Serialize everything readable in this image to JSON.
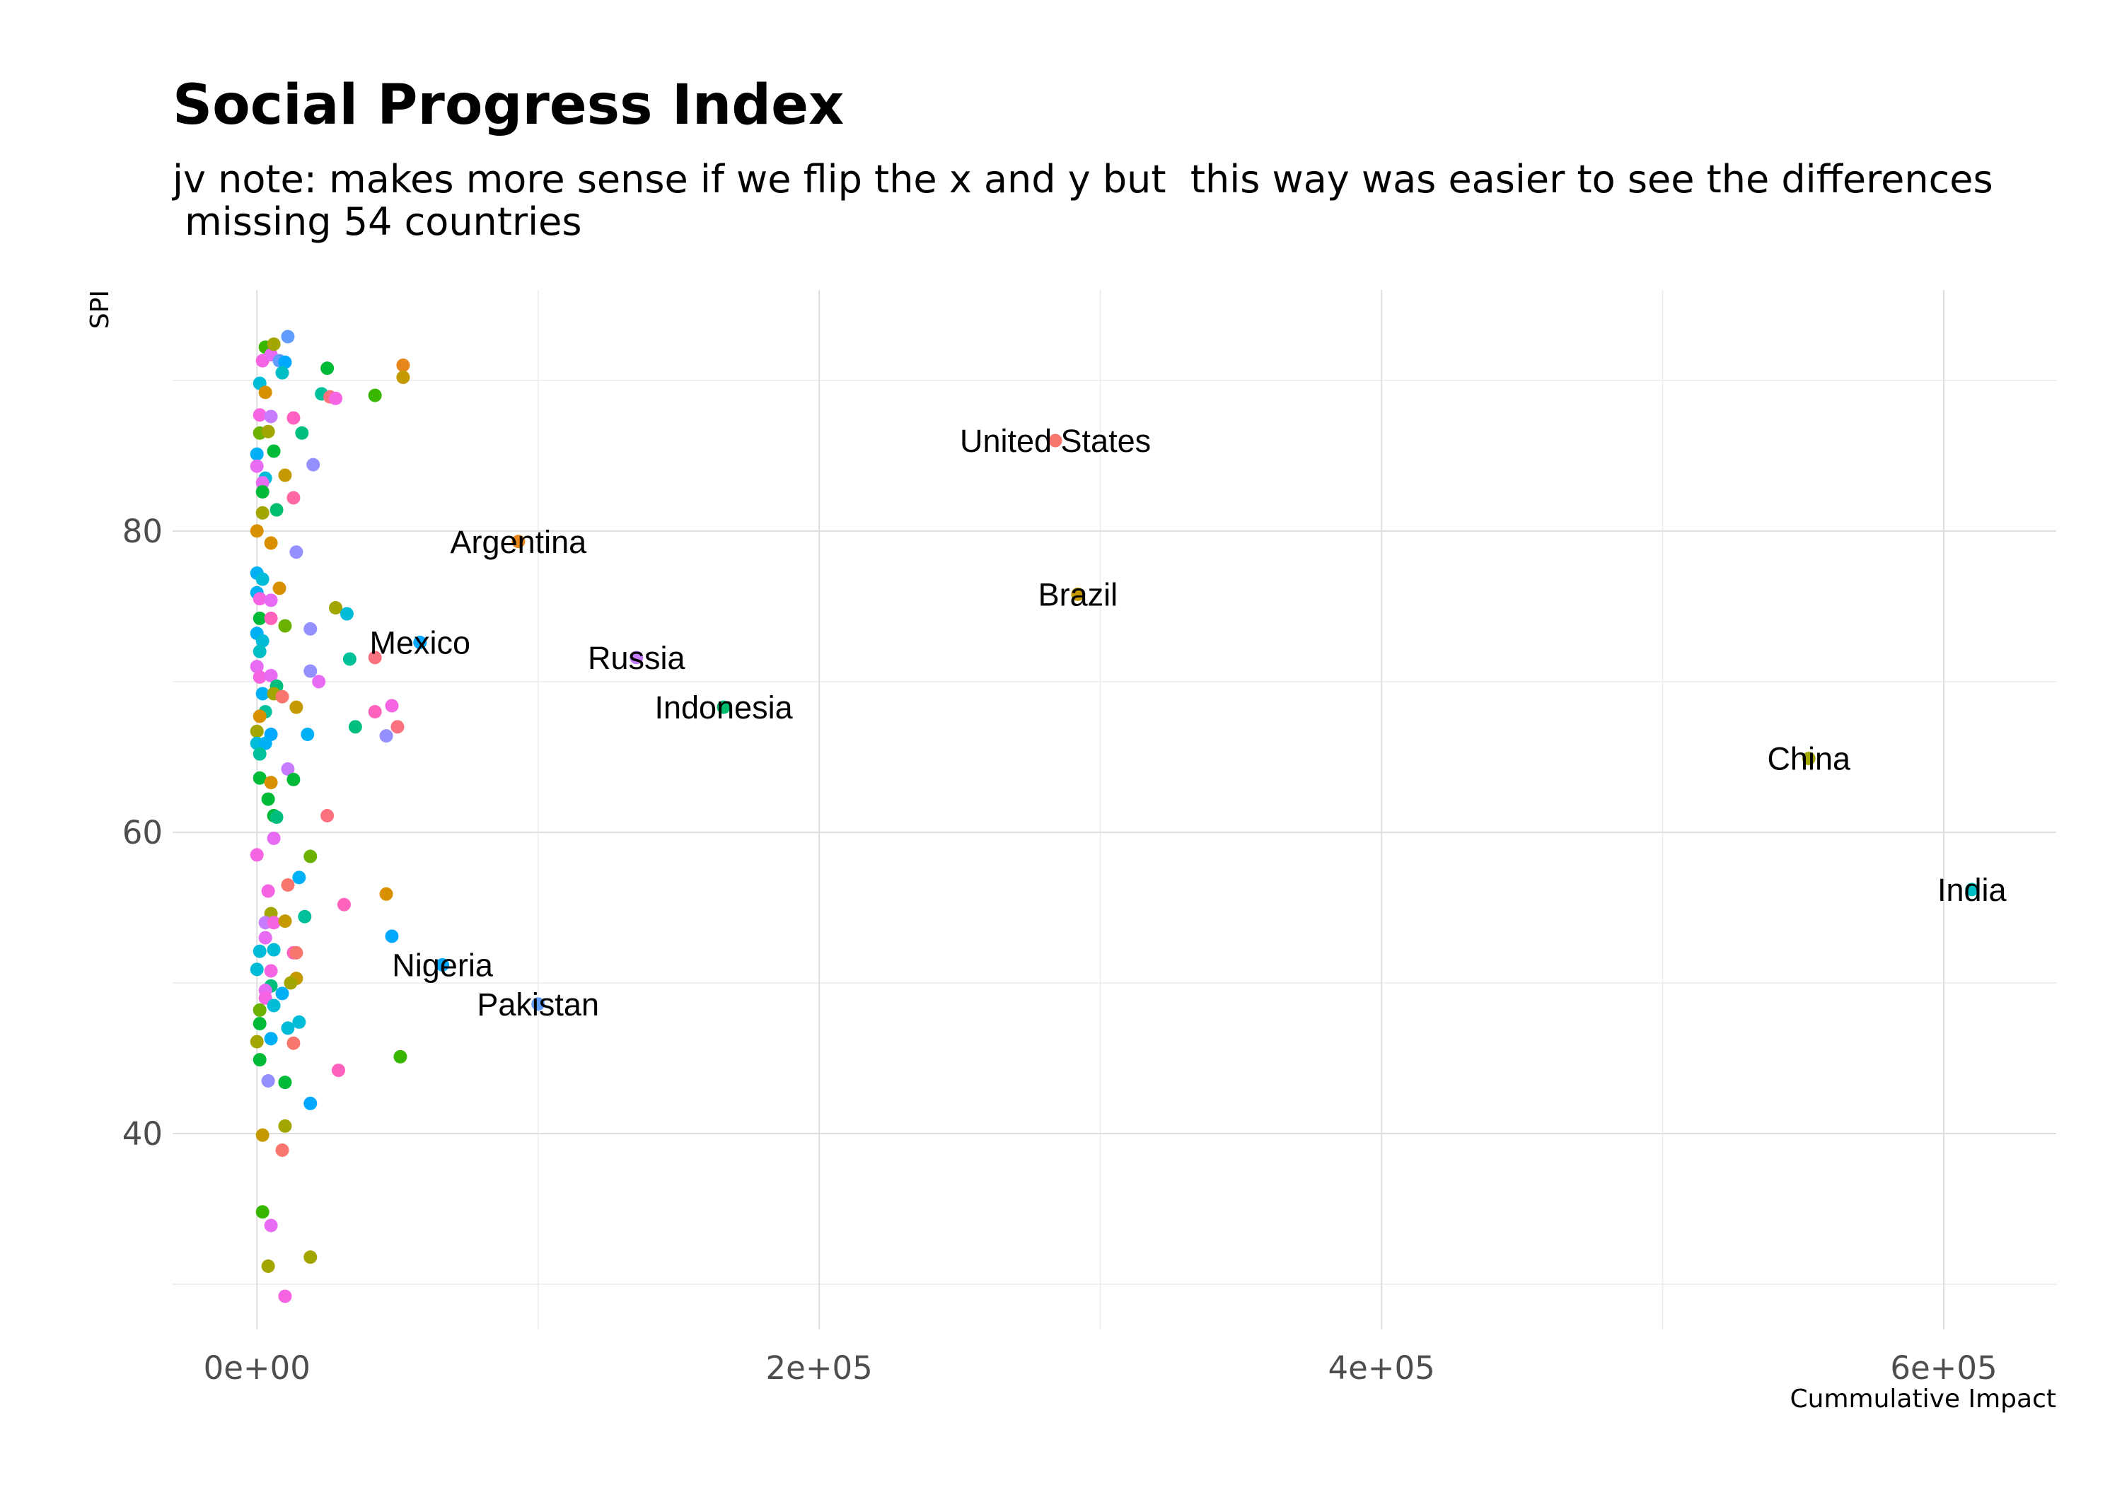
{
  "chart_data": {
    "type": "scatter",
    "title": "Social Progress Index",
    "subtitle": "jv note: makes more sense if we flip the x and y but  this way was easier to see the differences\n missing 54 countries",
    "xlabel": "Cummulative Impact",
    "ylabel": "SPI",
    "xlim": [
      -30000,
      640000
    ],
    "ylim": [
      27,
      96
    ],
    "x_ticks": [
      0,
      200000,
      400000,
      600000
    ],
    "x_tick_labels": [
      "0e+00",
      "2e+05",
      "4e+05",
      "6e+05"
    ],
    "y_ticks": [
      40,
      60,
      80
    ],
    "y_tick_labels": [
      "40",
      "60",
      "80"
    ],
    "grid": true,
    "legend": "none",
    "labeled_points": [
      {
        "label": "United States",
        "x": 284000,
        "y": 86.0,
        "color": "#f8766d"
      },
      {
        "label": "Argentina",
        "x": 93000,
        "y": 79.3,
        "color": "#e7861b"
      },
      {
        "label": "Brazil",
        "x": 292000,
        "y": 75.8,
        "color": "#c49a00"
      },
      {
        "label": "Mexico",
        "x": 58000,
        "y": 72.6,
        "color": "#00a9ff"
      },
      {
        "label": "Russia",
        "x": 135000,
        "y": 71.6,
        "color": "#c77cff"
      },
      {
        "label": "Indonesia",
        "x": 166000,
        "y": 68.3,
        "color": "#00be70"
      },
      {
        "label": "China",
        "x": 552000,
        "y": 64.9,
        "color": "#a3a500"
      },
      {
        "label": "India",
        "x": 610000,
        "y": 56.2,
        "color": "#00bfc4"
      },
      {
        "label": "Nigeria",
        "x": 66000,
        "y": 51.2,
        "color": "#00a9ff"
      },
      {
        "label": "Pakistan",
        "x": 100000,
        "y": 48.6,
        "color": "#619cff"
      }
    ],
    "points": [
      {
        "x": 1000,
        "y": 89.8,
        "color": "#00bcd8"
      },
      {
        "x": 2000,
        "y": 91.3,
        "color": "#f564e3"
      },
      {
        "x": 3000,
        "y": 92.2,
        "color": "#39b600"
      },
      {
        "x": 5000,
        "y": 91.7,
        "color": "#e76bf3"
      },
      {
        "x": 6000,
        "y": 92.4,
        "color": "#a3a500"
      },
      {
        "x": 8000,
        "y": 91.3,
        "color": "#619cff"
      },
      {
        "x": 10000,
        "y": 91.2,
        "color": "#00a9ff"
      },
      {
        "x": 11000,
        "y": 92.9,
        "color": "#619cff"
      },
      {
        "x": 9000,
        "y": 90.5,
        "color": "#00bfc4"
      },
      {
        "x": 25000,
        "y": 90.8,
        "color": "#00ba38"
      },
      {
        "x": 52000,
        "y": 91.0,
        "color": "#e7861b"
      },
      {
        "x": 52000,
        "y": 90.2,
        "color": "#c49a00"
      },
      {
        "x": 3000,
        "y": 89.2,
        "color": "#d89000"
      },
      {
        "x": 23000,
        "y": 89.1,
        "color": "#00c19a"
      },
      {
        "x": 26000,
        "y": 88.9,
        "color": "#fc717f"
      },
      {
        "x": 28000,
        "y": 88.8,
        "color": "#f564e3"
      },
      {
        "x": 42000,
        "y": 89.0,
        "color": "#39b600"
      },
      {
        "x": 1000,
        "y": 87.7,
        "color": "#f564e3"
      },
      {
        "x": 5000,
        "y": 87.6,
        "color": "#c77cff"
      },
      {
        "x": 13000,
        "y": 87.5,
        "color": "#ff61c3"
      },
      {
        "x": 1000,
        "y": 86.5,
        "color": "#6bb100"
      },
      {
        "x": 4000,
        "y": 86.6,
        "color": "#a3a500"
      },
      {
        "x": 16000,
        "y": 86.5,
        "color": "#00bf7d"
      },
      {
        "x": 0,
        "y": 85.1,
        "color": "#00b0f6"
      },
      {
        "x": 6000,
        "y": 85.3,
        "color": "#00ba38"
      },
      {
        "x": 0,
        "y": 84.3,
        "color": "#e76bf3"
      },
      {
        "x": 20000,
        "y": 84.4,
        "color": "#9590ff"
      },
      {
        "x": 3000,
        "y": 83.5,
        "color": "#00bcd8"
      },
      {
        "x": 10000,
        "y": 83.7,
        "color": "#c49a00"
      },
      {
        "x": 2000,
        "y": 83.2,
        "color": "#e76bf3"
      },
      {
        "x": 2000,
        "y": 82.6,
        "color": "#00ba38"
      },
      {
        "x": 13000,
        "y": 82.2,
        "color": "#ff67a4"
      },
      {
        "x": 2000,
        "y": 81.2,
        "color": "#a3a500"
      },
      {
        "x": 7000,
        "y": 81.4,
        "color": "#00be70"
      },
      {
        "x": 0,
        "y": 80.0,
        "color": "#d89000"
      },
      {
        "x": 5000,
        "y": 79.2,
        "color": "#d89000"
      },
      {
        "x": 14000,
        "y": 78.6,
        "color": "#9590ff"
      },
      {
        "x": 0,
        "y": 77.2,
        "color": "#00b0f6"
      },
      {
        "x": 2000,
        "y": 76.8,
        "color": "#00bcd8"
      },
      {
        "x": 8000,
        "y": 76.2,
        "color": "#d89000"
      },
      {
        "x": 0,
        "y": 75.9,
        "color": "#00b0f6"
      },
      {
        "x": 1000,
        "y": 75.5,
        "color": "#f564e3"
      },
      {
        "x": 5000,
        "y": 75.4,
        "color": "#e76bf3"
      },
      {
        "x": 28000,
        "y": 74.9,
        "color": "#a3a500"
      },
      {
        "x": 32000,
        "y": 74.5,
        "color": "#00bcd8"
      },
      {
        "x": 1000,
        "y": 74.2,
        "color": "#00ba38"
      },
      {
        "x": 5000,
        "y": 74.2,
        "color": "#ff62bc"
      },
      {
        "x": 10000,
        "y": 73.7,
        "color": "#6bb100"
      },
      {
        "x": 19000,
        "y": 73.5,
        "color": "#9590ff"
      },
      {
        "x": 0,
        "y": 73.2,
        "color": "#00b0f6"
      },
      {
        "x": 2000,
        "y": 72.7,
        "color": "#00bcd8"
      },
      {
        "x": 1000,
        "y": 72.0,
        "color": "#00bfc4"
      },
      {
        "x": 42000,
        "y": 71.6,
        "color": "#fc717f"
      },
      {
        "x": 33000,
        "y": 71.5,
        "color": "#00c19a"
      },
      {
        "x": 0,
        "y": 71.0,
        "color": "#e76bf3"
      },
      {
        "x": 1000,
        "y": 70.3,
        "color": "#f564e3"
      },
      {
        "x": 5000,
        "y": 70.4,
        "color": "#e76bf3"
      },
      {
        "x": 19000,
        "y": 70.7,
        "color": "#9590ff"
      },
      {
        "x": 22000,
        "y": 70.0,
        "color": "#e76bf3"
      },
      {
        "x": 7000,
        "y": 69.7,
        "color": "#00bf7d"
      },
      {
        "x": 2000,
        "y": 69.2,
        "color": "#00b0f6"
      },
      {
        "x": 6000,
        "y": 69.2,
        "color": "#a3a500"
      },
      {
        "x": 9000,
        "y": 69.0,
        "color": "#f8766d"
      },
      {
        "x": 14000,
        "y": 68.3,
        "color": "#c49a00"
      },
      {
        "x": 3000,
        "y": 68.0,
        "color": "#00c19a"
      },
      {
        "x": 1000,
        "y": 67.7,
        "color": "#d89000"
      },
      {
        "x": 42000,
        "y": 68.0,
        "color": "#ff62bc"
      },
      {
        "x": 48000,
        "y": 68.4,
        "color": "#f564e3"
      },
      {
        "x": 50000,
        "y": 67.0,
        "color": "#fc717f"
      },
      {
        "x": 35000,
        "y": 67.0,
        "color": "#00bf7d"
      },
      {
        "x": 0,
        "y": 66.7,
        "color": "#a3a500"
      },
      {
        "x": 5000,
        "y": 66.5,
        "color": "#00a9ff"
      },
      {
        "x": 18000,
        "y": 66.5,
        "color": "#00b0f6"
      },
      {
        "x": 46000,
        "y": 66.4,
        "color": "#9590ff"
      },
      {
        "x": 0,
        "y": 65.9,
        "color": "#00bcd8"
      },
      {
        "x": 3000,
        "y": 65.9,
        "color": "#00b0f6"
      },
      {
        "x": 1000,
        "y": 65.2,
        "color": "#00c19a"
      },
      {
        "x": 11000,
        "y": 64.2,
        "color": "#c77cff"
      },
      {
        "x": 1000,
        "y": 63.6,
        "color": "#00ba38"
      },
      {
        "x": 5000,
        "y": 63.3,
        "color": "#d89000"
      },
      {
        "x": 13000,
        "y": 63.5,
        "color": "#00ba38"
      },
      {
        "x": 4000,
        "y": 62.2,
        "color": "#00ba38"
      },
      {
        "x": 6000,
        "y": 61.1,
        "color": "#00ba38"
      },
      {
        "x": 7000,
        "y": 61.0,
        "color": "#00bf7d"
      },
      {
        "x": 25000,
        "y": 61.1,
        "color": "#fc717f"
      },
      {
        "x": 6000,
        "y": 59.6,
        "color": "#e76bf3"
      },
      {
        "x": 0,
        "y": 58.5,
        "color": "#f564e3"
      },
      {
        "x": 19000,
        "y": 58.4,
        "color": "#6bb100"
      },
      {
        "x": 15000,
        "y": 57.0,
        "color": "#00b0f6"
      },
      {
        "x": 11000,
        "y": 56.5,
        "color": "#f8766d"
      },
      {
        "x": 4000,
        "y": 56.1,
        "color": "#f564e3"
      },
      {
        "x": 46000,
        "y": 55.9,
        "color": "#d89000"
      },
      {
        "x": 31000,
        "y": 55.2,
        "color": "#ff62bc"
      },
      {
        "x": 17000,
        "y": 54.4,
        "color": "#00c19a"
      },
      {
        "x": 5000,
        "y": 54.6,
        "color": "#a3a500"
      },
      {
        "x": 3000,
        "y": 54.0,
        "color": "#c77cff"
      },
      {
        "x": 6000,
        "y": 54.0,
        "color": "#f564e3"
      },
      {
        "x": 10000,
        "y": 54.1,
        "color": "#c49a00"
      },
      {
        "x": 3000,
        "y": 53.0,
        "color": "#e76bf3"
      },
      {
        "x": 48000,
        "y": 53.1,
        "color": "#00a9ff"
      },
      {
        "x": 1000,
        "y": 52.1,
        "color": "#00bcd8"
      },
      {
        "x": 6000,
        "y": 52.2,
        "color": "#00bcd8"
      },
      {
        "x": 13000,
        "y": 52.0,
        "color": "#ff61c3"
      },
      {
        "x": 14000,
        "y": 52.0,
        "color": "#f8766d"
      },
      {
        "x": 0,
        "y": 50.9,
        "color": "#00bcd8"
      },
      {
        "x": 5000,
        "y": 50.8,
        "color": "#f564e3"
      },
      {
        "x": 14000,
        "y": 50.3,
        "color": "#c49a00"
      },
      {
        "x": 12000,
        "y": 50.0,
        "color": "#a3a500"
      },
      {
        "x": 5000,
        "y": 49.8,
        "color": "#00bf7d"
      },
      {
        "x": 9000,
        "y": 49.3,
        "color": "#00b0f6"
      },
      {
        "x": 3000,
        "y": 49.5,
        "color": "#e76bf3"
      },
      {
        "x": 3000,
        "y": 49.0,
        "color": "#f564e3"
      },
      {
        "x": 1000,
        "y": 48.2,
        "color": "#6bb100"
      },
      {
        "x": 6000,
        "y": 48.5,
        "color": "#00bcd8"
      },
      {
        "x": 1000,
        "y": 47.3,
        "color": "#00ba38"
      },
      {
        "x": 11000,
        "y": 47.0,
        "color": "#00bcd8"
      },
      {
        "x": 15000,
        "y": 47.4,
        "color": "#00bcd8"
      },
      {
        "x": 0,
        "y": 46.1,
        "color": "#a3a500"
      },
      {
        "x": 5000,
        "y": 46.3,
        "color": "#00b0f6"
      },
      {
        "x": 13000,
        "y": 46.0,
        "color": "#f8766d"
      },
      {
        "x": 1000,
        "y": 44.9,
        "color": "#00ba38"
      },
      {
        "x": 51000,
        "y": 45.1,
        "color": "#39b600"
      },
      {
        "x": 29000,
        "y": 44.2,
        "color": "#ff62bc"
      },
      {
        "x": 4000,
        "y": 43.5,
        "color": "#9590ff"
      },
      {
        "x": 10000,
        "y": 43.4,
        "color": "#00ba38"
      },
      {
        "x": 19000,
        "y": 42.0,
        "color": "#00a9ff"
      },
      {
        "x": 10000,
        "y": 40.5,
        "color": "#a3a500"
      },
      {
        "x": 2000,
        "y": 39.9,
        "color": "#c49a00"
      },
      {
        "x": 9000,
        "y": 38.9,
        "color": "#f8766d"
      },
      {
        "x": 2000,
        "y": 34.8,
        "color": "#39b600"
      },
      {
        "x": 5000,
        "y": 33.9,
        "color": "#e76bf3"
      },
      {
        "x": 4000,
        "y": 31.2,
        "color": "#a3a500"
      },
      {
        "x": 19000,
        "y": 31.8,
        "color": "#a3a500"
      },
      {
        "x": 10000,
        "y": 29.2,
        "color": "#f564e3"
      }
    ]
  }
}
